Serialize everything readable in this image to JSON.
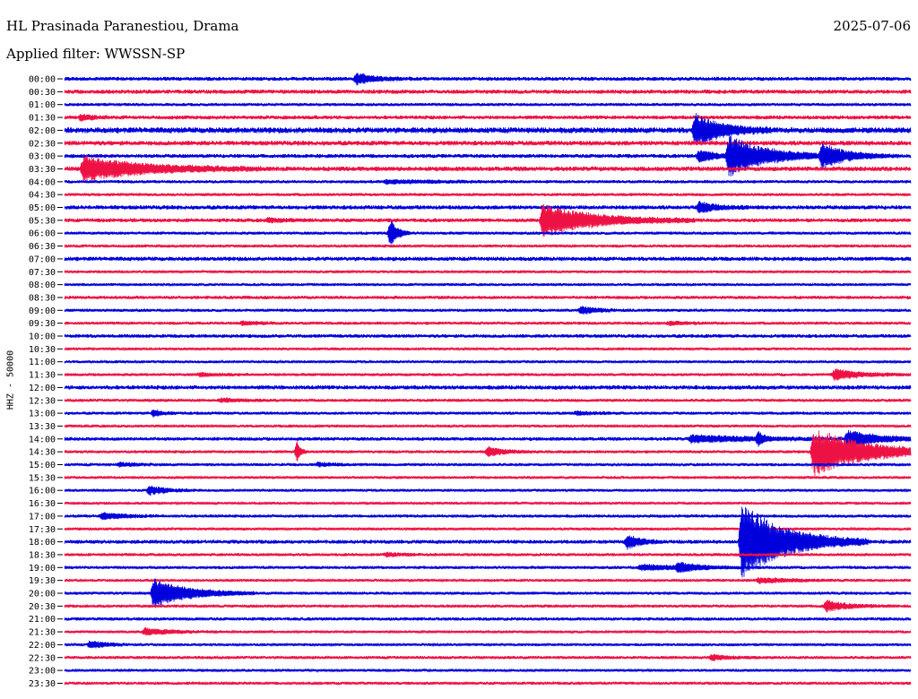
{
  "header": {
    "station": "HL Prasinada Paranestiou, Drama",
    "date": "2025-07-06",
    "filter": "Applied filter: WWSSN-SP"
  },
  "chart_data": {
    "type": "line",
    "title": "",
    "xlabel": "",
    "ylabel": "HHZ - 50000",
    "trace_colors": [
      "#0000dd",
      "#ee1144"
    ],
    "rows": [
      {
        "label": "00:00",
        "noise": 1.5,
        "events": [
          {
            "x": 0.345,
            "amp": 6,
            "dur": 0.022
          }
        ]
      },
      {
        "label": "00:30",
        "noise": 1.6,
        "events": []
      },
      {
        "label": "01:00",
        "noise": 1.2,
        "events": []
      },
      {
        "label": "01:30",
        "noise": 1.5,
        "events": [
          {
            "x": 0.02,
            "amp": 3,
            "dur": 0.015
          }
        ]
      },
      {
        "label": "02:00",
        "noise": 2.2,
        "events": [
          {
            "x": 0.745,
            "amp": 18,
            "dur": 0.03
          }
        ]
      },
      {
        "label": "02:30",
        "noise": 1.8,
        "events": []
      },
      {
        "label": "03:00",
        "noise": 1.5,
        "events": [
          {
            "x": 0.75,
            "amp": 7,
            "dur": 0.02
          },
          {
            "x": 0.785,
            "amp": 22,
            "dur": 0.045
          },
          {
            "x": 0.895,
            "amp": 12,
            "dur": 0.03
          }
        ]
      },
      {
        "label": "03:30",
        "noise": 1.8,
        "events": [
          {
            "x": 0.022,
            "amp": 14,
            "dur": 0.07
          }
        ]
      },
      {
        "label": "04:00",
        "noise": 1.2,
        "events": [
          {
            "x": 0.38,
            "amp": 2,
            "dur": 0.06
          }
        ]
      },
      {
        "label": "04:30",
        "noise": 1.2,
        "events": []
      },
      {
        "label": "05:00",
        "noise": 1.6,
        "events": [
          {
            "x": 0.75,
            "amp": 6,
            "dur": 0.02
          }
        ]
      },
      {
        "label": "05:30",
        "noise": 1.5,
        "events": [
          {
            "x": 0.24,
            "amp": 2,
            "dur": 0.02
          },
          {
            "x": 0.565,
            "amp": 18,
            "dur": 0.06
          }
        ]
      },
      {
        "label": "06:00",
        "noise": 1.2,
        "events": [
          {
            "x": 0.385,
            "amp": 16,
            "dur": 0.008
          }
        ]
      },
      {
        "label": "06:30",
        "noise": 1.2,
        "events": []
      },
      {
        "label": "07:00",
        "noise": 1.6,
        "events": []
      },
      {
        "label": "07:30",
        "noise": 1.1,
        "events": []
      },
      {
        "label": "08:00",
        "noise": 1.1,
        "events": []
      },
      {
        "label": "08:30",
        "noise": 1.3,
        "events": []
      },
      {
        "label": "09:00",
        "noise": 1.2,
        "events": [
          {
            "x": 0.61,
            "amp": 4,
            "dur": 0.02
          }
        ]
      },
      {
        "label": "09:30",
        "noise": 1.2,
        "events": [
          {
            "x": 0.21,
            "amp": 2,
            "dur": 0.02
          },
          {
            "x": 0.715,
            "amp": 2,
            "dur": 0.02
          }
        ]
      },
      {
        "label": "10:00",
        "noise": 1.4,
        "events": []
      },
      {
        "label": "10:30",
        "noise": 1.1,
        "events": []
      },
      {
        "label": "11:00",
        "noise": 1.1,
        "events": []
      },
      {
        "label": "11:30",
        "noise": 1.2,
        "events": [
          {
            "x": 0.16,
            "amp": 2,
            "dur": 0.02
          },
          {
            "x": 0.91,
            "amp": 6,
            "dur": 0.03
          }
        ]
      },
      {
        "label": "12:00",
        "noise": 1.6,
        "events": []
      },
      {
        "label": "12:30",
        "noise": 1.2,
        "events": [
          {
            "x": 0.185,
            "amp": 2,
            "dur": 0.025
          }
        ]
      },
      {
        "label": "13:00",
        "noise": 1.2,
        "events": [
          {
            "x": 0.105,
            "amp": 4,
            "dur": 0.01
          },
          {
            "x": 0.605,
            "amp": 2,
            "dur": 0.02
          }
        ]
      },
      {
        "label": "13:30",
        "noise": 1.1,
        "events": []
      },
      {
        "label": "14:00",
        "noise": 1.4,
        "events": [
          {
            "x": 0.74,
            "amp": 4,
            "dur": 0.08
          },
          {
            "x": 0.82,
            "amp": 8,
            "dur": 0.005
          },
          {
            "x": 0.925,
            "amp": 9,
            "dur": 0.035
          }
        ]
      },
      {
        "label": "14:30",
        "noise": 1.2,
        "events": [
          {
            "x": 0.275,
            "amp": 12,
            "dur": 0.004
          },
          {
            "x": 0.5,
            "amp": 5,
            "dur": 0.02
          },
          {
            "x": 0.885,
            "amp": 28,
            "dur": 0.06
          }
        ]
      },
      {
        "label": "15:00",
        "noise": 1.2,
        "events": [
          {
            "x": 0.065,
            "amp": 2,
            "dur": 0.02
          },
          {
            "x": 0.3,
            "amp": 2,
            "dur": 0.02
          }
        ]
      },
      {
        "label": "15:30",
        "noise": 1.1,
        "events": []
      },
      {
        "label": "16:00",
        "noise": 1.1,
        "events": [
          {
            "x": 0.1,
            "amp": 5,
            "dur": 0.02
          }
        ]
      },
      {
        "label": "16:30",
        "noise": 1.1,
        "events": []
      },
      {
        "label": "17:00",
        "noise": 1.2,
        "events": [
          {
            "x": 0.045,
            "amp": 4,
            "dur": 0.025
          }
        ]
      },
      {
        "label": "17:30",
        "noise": 1.1,
        "events": []
      },
      {
        "label": "18:00",
        "noise": 1.5,
        "events": [
          {
            "x": 0.665,
            "amp": 8,
            "dur": 0.015
          },
          {
            "x": 0.8,
            "amp": 44,
            "dur": 0.05
          }
        ]
      },
      {
        "label": "18:30",
        "noise": 1.2,
        "events": [
          {
            "x": 0.38,
            "amp": 2,
            "dur": 0.02
          }
        ]
      },
      {
        "label": "19:00",
        "noise": 1.2,
        "events": [
          {
            "x": 0.68,
            "amp": 3,
            "dur": 0.06
          },
          {
            "x": 0.725,
            "amp": 5,
            "dur": 0.02
          }
        ]
      },
      {
        "label": "19:30",
        "noise": 1.1,
        "events": [
          {
            "x": 0.82,
            "amp": 3,
            "dur": 0.04
          }
        ]
      },
      {
        "label": "20:00",
        "noise": 1.2,
        "events": [
          {
            "x": 0.105,
            "amp": 16,
            "dur": 0.04
          }
        ]
      },
      {
        "label": "20:30",
        "noise": 1.2,
        "events": [
          {
            "x": 0.9,
            "amp": 6,
            "dur": 0.025
          }
        ]
      },
      {
        "label": "21:00",
        "noise": 1.3,
        "events": []
      },
      {
        "label": "21:30",
        "noise": 1.1,
        "events": [
          {
            "x": 0.095,
            "amp": 4,
            "dur": 0.03
          }
        ]
      },
      {
        "label": "22:00",
        "noise": 1.1,
        "events": [
          {
            "x": 0.03,
            "amp": 4,
            "dur": 0.02
          }
        ]
      },
      {
        "label": "22:30",
        "noise": 1.2,
        "events": [
          {
            "x": 0.765,
            "amp": 3,
            "dur": 0.02
          }
        ]
      },
      {
        "label": "23:00",
        "noise": 1.1,
        "events": []
      },
      {
        "label": "23:30",
        "noise": 1.2,
        "events": []
      }
    ]
  }
}
